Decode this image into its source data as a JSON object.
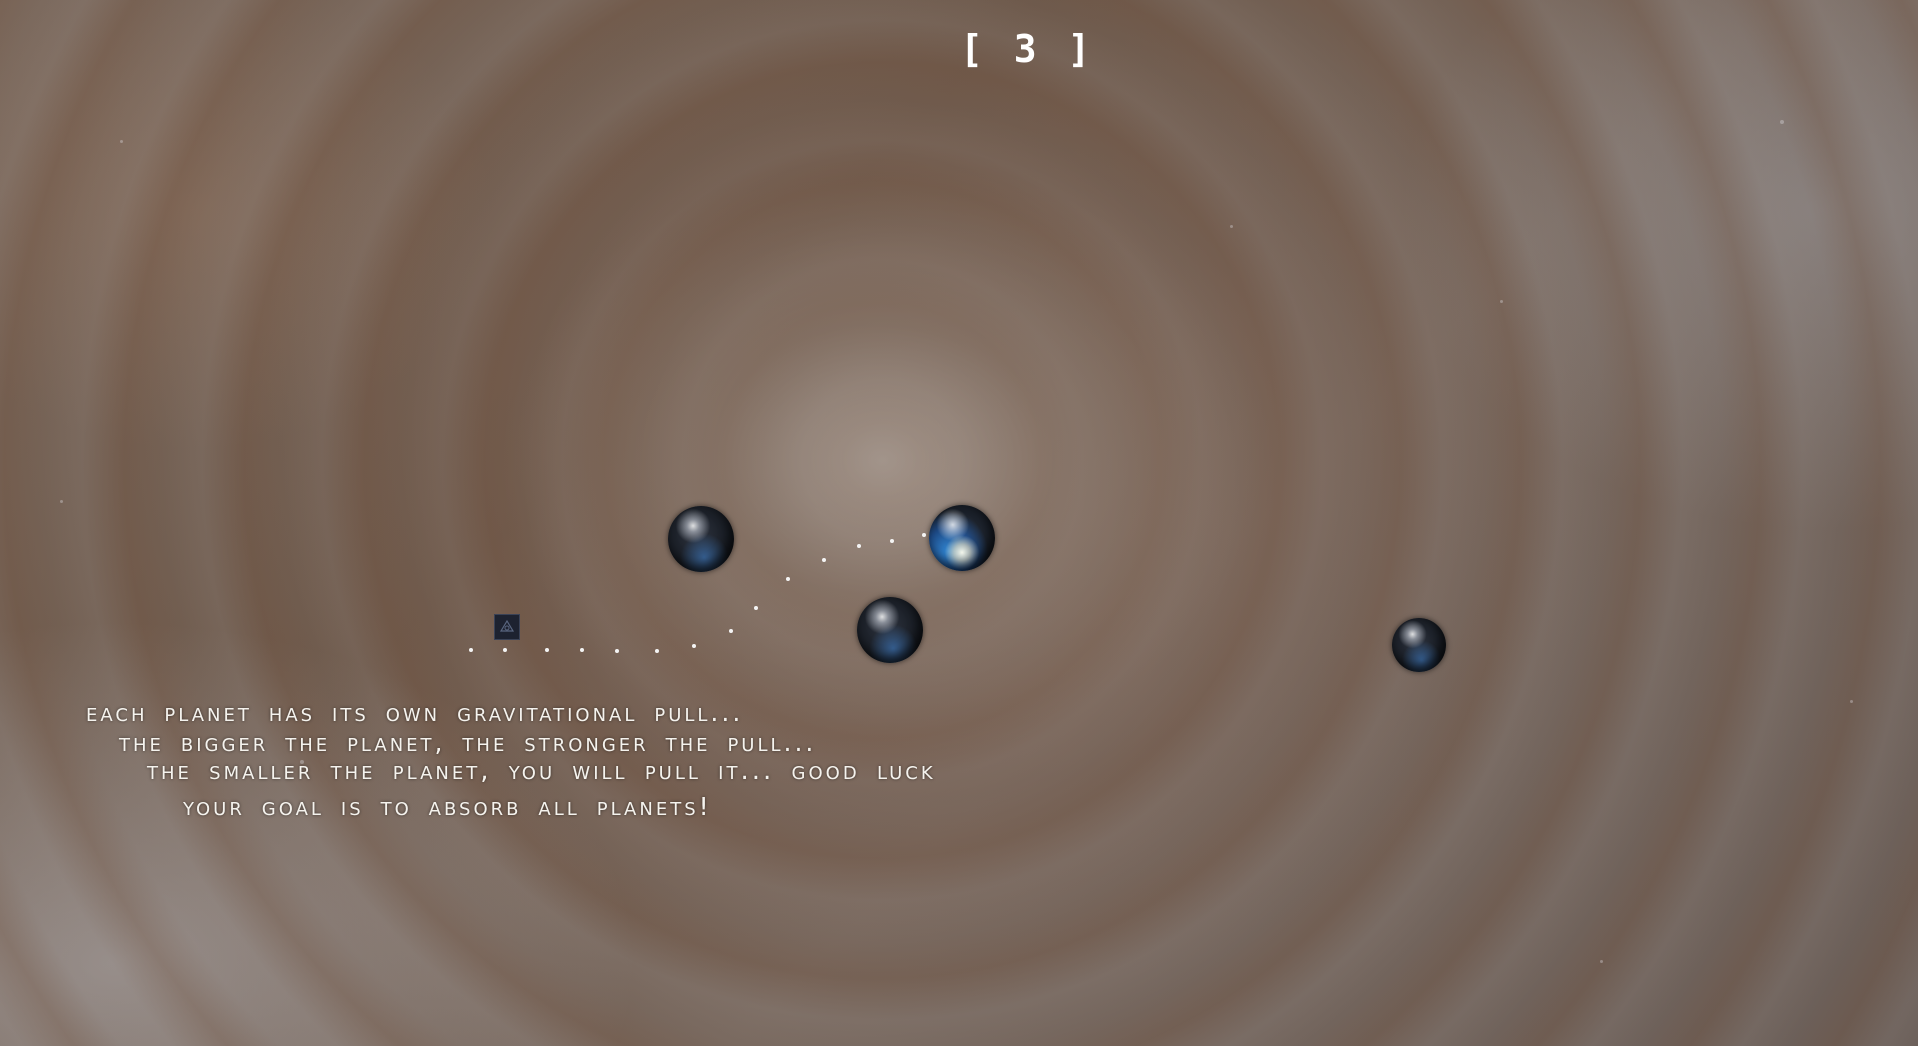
{
  "hud": {
    "counter": "[ 3 ]"
  },
  "instructions": {
    "line1": "Each Planet has its own gravitational pull...",
    "line2": "The bigger the Planet, the stronger the pull...",
    "line3": "The smaller the Planet, YOU will pull it... Good Luck",
    "line4": "Your Goal is to Absorb all planets!"
  },
  "colors": {
    "text": "#f5f3ee",
    "background": "#7a6a60",
    "trail": "#f4f4f4"
  },
  "icons": {
    "player": "ship-square-icon",
    "planet": "planet-icon"
  }
}
